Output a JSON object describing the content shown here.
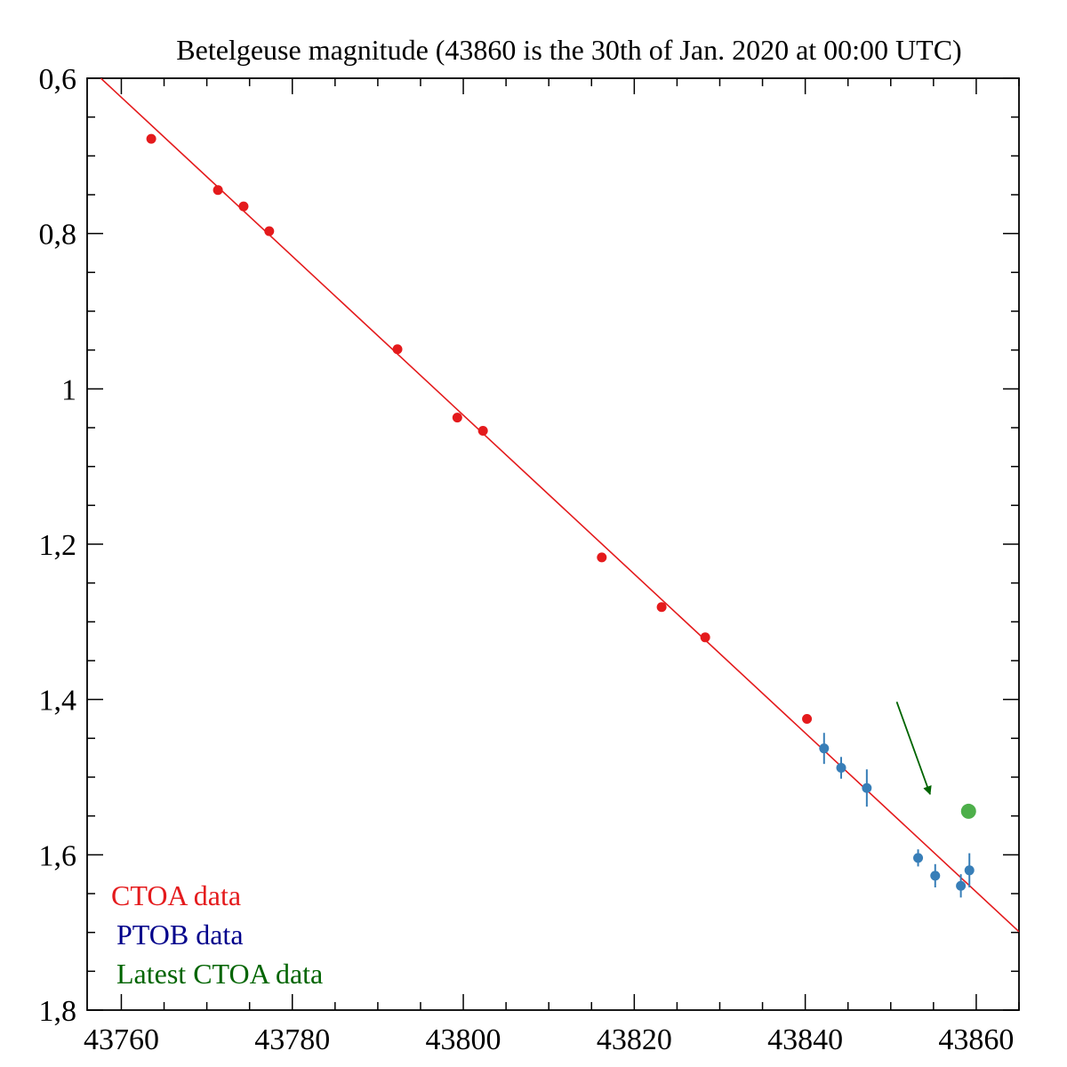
{
  "chart_data": {
    "type": "scatter",
    "title": "Betelgeuse magnitude (43860 is the 30th of Jan. 2020 at 00:00 UTC)",
    "xlabel": "",
    "ylabel": "",
    "xlim": [
      43756,
      43865
    ],
    "ylim": [
      0.6,
      1.8
    ],
    "y_inverted": true,
    "x_ticks": [
      43760,
      43780,
      43800,
      43820,
      43840,
      43860
    ],
    "x_tick_labels": [
      "43760",
      "43780",
      "43800",
      "43820",
      "43840",
      "43860"
    ],
    "y_ticks": [
      0.6,
      0.8,
      1.0,
      1.2,
      1.4,
      1.6,
      1.8
    ],
    "y_tick_labels": [
      "0,6",
      "0,8",
      "1",
      "1,2",
      "1,4",
      "1,6",
      "1,8"
    ],
    "grid": false,
    "legend_position": "bottom-left",
    "series": [
      {
        "name": "CTOA data",
        "color": "#e41a1c",
        "x": [
          43763.5,
          43771.3,
          43774.3,
          43777.3,
          43792.3,
          43799.3,
          43802.3,
          43816.2,
          43823.2,
          43828.3,
          43840.2
        ],
        "y": [
          0.678,
          0.744,
          0.765,
          0.797,
          0.949,
          1.037,
          1.054,
          1.217,
          1.281,
          1.32,
          1.425
        ]
      },
      {
        "name": "PTOB data",
        "color": "#377eb8",
        "x": [
          43842.2,
          43844.2,
          43847.2,
          43853.2,
          43855.2,
          43858.2,
          43859.2
        ],
        "y": [
          1.463,
          1.488,
          1.514,
          1.604,
          1.627,
          1.64,
          1.62
        ],
        "y_err": [
          0.02,
          0.014,
          0.024,
          0.011,
          0.015,
          0.015,
          0.022
        ]
      },
      {
        "name": "Latest CTOA data",
        "color": "#4daf4a",
        "x": [
          43859.1
        ],
        "y": [
          1.544
        ]
      },
      {
        "name": "linear fit",
        "type": "line",
        "color": "#e41a1c",
        "x": [
          43757.6,
          43865
        ],
        "y": [
          0.6,
          1.699
        ]
      }
    ],
    "annotations": [
      {
        "type": "arrow",
        "color": "#006400",
        "from": [
          43850.7,
          1.403
        ],
        "to": [
          43854.6,
          1.522
        ]
      }
    ]
  }
}
